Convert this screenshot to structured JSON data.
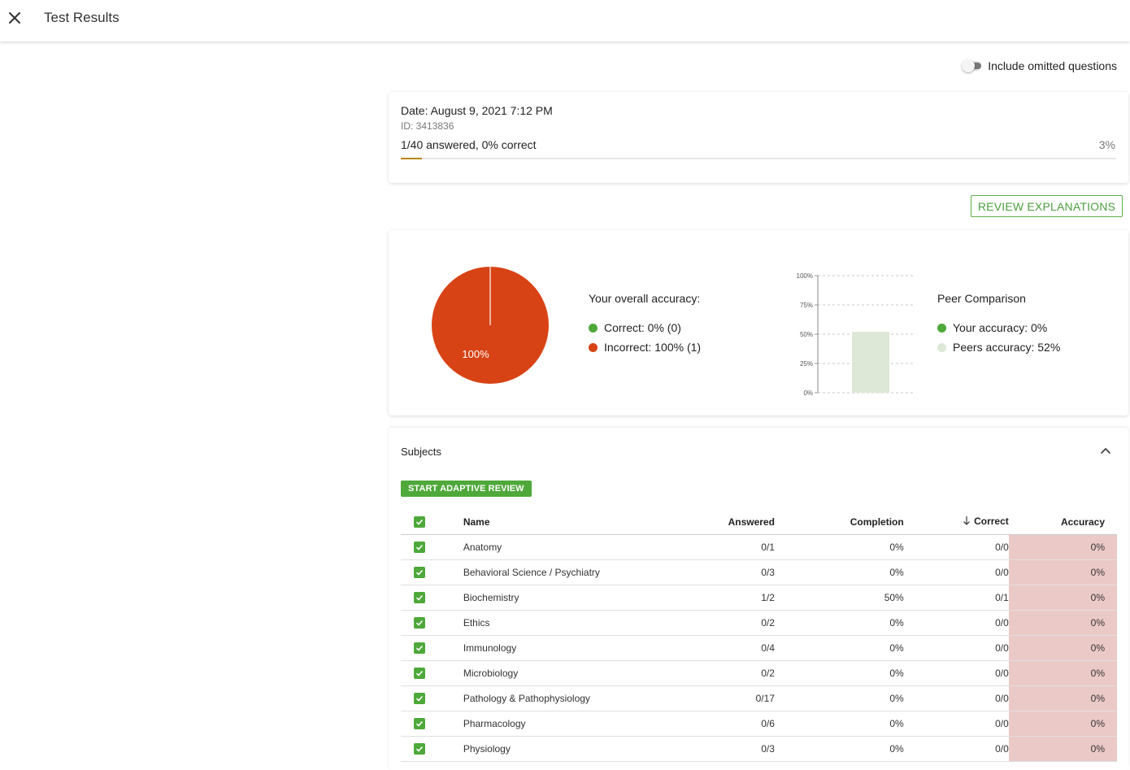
{
  "header": {
    "title": "Test Results",
    "close_icon": "close-icon"
  },
  "toggle": {
    "label": "Include omitted questions",
    "on": false
  },
  "info": {
    "date": "Date: August 9, 2021 7:12 PM",
    "id": "ID: 3413836",
    "answered": "1/40 answered, 0% correct",
    "percent": "3%",
    "progress_fraction": 0.03,
    "progress_color": "#b8860b"
  },
  "review_button": "REVIEW EXPLANATIONS",
  "accuracy": {
    "pie_label": "100%",
    "title": "Your overall accuracy:",
    "correct": "Correct: 0% (0)",
    "incorrect": "Incorrect: 100% (1)",
    "correct_color": "#4ea83a",
    "incorrect_color": "#d84315"
  },
  "peer": {
    "title": "Peer Comparison",
    "yours": "Your accuracy: 0%",
    "peers": "Peers accuracy: 52%",
    "yours_color": "#4ea83a",
    "peers_color": "#dde8d6"
  },
  "chart_data": [
    {
      "type": "pie",
      "categories": [
        "Correct",
        "Incorrect"
      ],
      "values": [
        0,
        100
      ],
      "data_labels": [
        "",
        "100%"
      ]
    },
    {
      "type": "bar",
      "categories": [
        "Your accuracy",
        "Peers accuracy"
      ],
      "values": [
        0,
        52
      ],
      "ylim": [
        0,
        100
      ],
      "yticks": [
        "0%",
        "25%",
        "50%",
        "75%",
        "100%"
      ],
      "grid": true
    }
  ],
  "subjects": {
    "title": "Subjects",
    "adaptive_button": "START ADAPTIVE REVIEW",
    "columns": {
      "name": "Name",
      "answered": "Answered",
      "completion": "Completion",
      "correct": "Correct",
      "accuracy": "Accuracy"
    },
    "rows": [
      {
        "name": "Anatomy",
        "answered": "0/1",
        "completion": "0%",
        "correct": "0/0",
        "accuracy": "0%"
      },
      {
        "name": "Behavioral Science / Psychiatry",
        "answered": "0/3",
        "completion": "0%",
        "correct": "0/0",
        "accuracy": "0%"
      },
      {
        "name": "Biochemistry",
        "answered": "1/2",
        "completion": "50%",
        "correct": "0/1",
        "accuracy": "0%"
      },
      {
        "name": "Ethics",
        "answered": "0/2",
        "completion": "0%",
        "correct": "0/0",
        "accuracy": "0%"
      },
      {
        "name": "Immunology",
        "answered": "0/4",
        "completion": "0%",
        "correct": "0/0",
        "accuracy": "0%"
      },
      {
        "name": "Microbiology",
        "answered": "0/2",
        "completion": "0%",
        "correct": "0/0",
        "accuracy": "0%"
      },
      {
        "name": "Pathology & Pathophysiology",
        "answered": "0/17",
        "completion": "0%",
        "correct": "0/0",
        "accuracy": "0%"
      },
      {
        "name": "Pharmacology",
        "answered": "0/6",
        "completion": "0%",
        "correct": "0/0",
        "accuracy": "0%"
      },
      {
        "name": "Physiology",
        "answered": "0/3",
        "completion": "0%",
        "correct": "0/0",
        "accuracy": "0%"
      }
    ]
  }
}
